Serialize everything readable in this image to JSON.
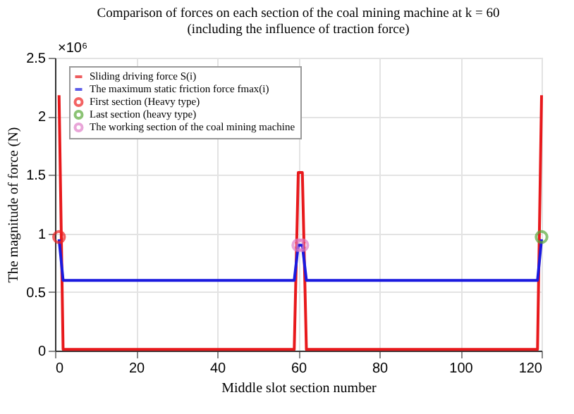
{
  "chart_data": {
    "type": "line",
    "title": [
      "Comparison of forces on each section of the coal mining machine at k = 60",
      "(including the influence of traction force)"
    ],
    "xlabel": "Middle slot section number",
    "ylabel": "The magnitude of force (N)",
    "annotations": [
      "×10⁶"
    ],
    "series": [
      {
        "name": "Sliding driving force S(i)",
        "color": "#e8191c",
        "x": [
          1,
          2,
          59,
          60,
          61,
          62,
          119,
          120
        ],
        "values": [
          2.18,
          0.01,
          0.01,
          1.52,
          1.52,
          0.01,
          0.01,
          2.18
        ]
      },
      {
        "name": "The maximum static friction force fmax(i)",
        "color": "#1a1adf",
        "x": [
          1,
          2,
          59,
          60,
          61,
          62,
          119,
          120
        ],
        "values": [
          0.95,
          0.6,
          0.6,
          0.9,
          0.9,
          0.6,
          0.6,
          0.95
        ]
      },
      {
        "name": "First section (Heavy type)",
        "type": "scatter",
        "marker": "circle",
        "color": "#ee2222",
        "x": [
          1
        ],
        "values": [
          0.97
        ]
      },
      {
        "name": "Last section (heavy type)",
        "type": "scatter",
        "marker": "circle",
        "color": "#5aaa3a",
        "x": [
          120
        ],
        "values": [
          0.97
        ]
      },
      {
        "name": "The working section of the coal mining machine",
        "type": "scatter",
        "marker": "circle",
        "color": "#e07fc8",
        "x": [
          60,
          61
        ],
        "values": [
          0.9,
          0.9
        ]
      }
    ],
    "xlim": [
      0,
      120
    ],
    "xticks": [
      0,
      20,
      40,
      60,
      80,
      100,
      120
    ],
    "ylim": [
      0,
      2.5
    ],
    "yticks": [
      0,
      0.5,
      1,
      1.5,
      2,
      2.5
    ],
    "grid": true,
    "legend": "top left",
    "line_style": "solid"
  }
}
